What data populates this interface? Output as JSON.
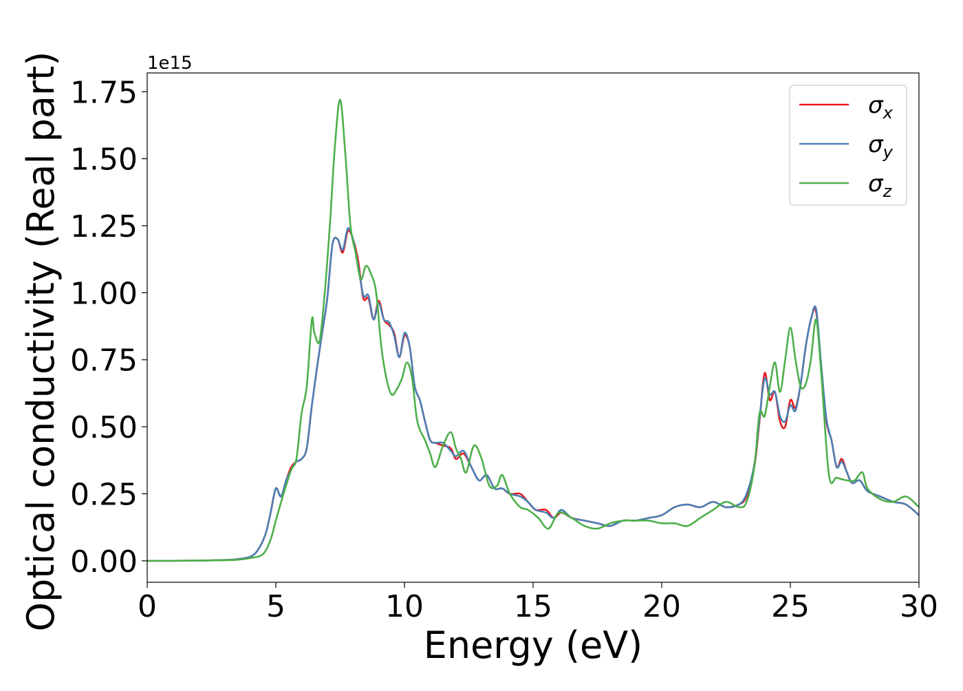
{
  "chart_data": {
    "type": "line",
    "title": "",
    "xlabel": "Energy (eV)",
    "ylabel": "Optical conductivity (Real part)",
    "y_offset_text": "1e15",
    "y_scale_multiplier": 1000000000000000.0,
    "xlim": [
      0,
      30
    ],
    "ylim": [
      -0.08,
      1.82
    ],
    "x_ticks": [
      0,
      5,
      10,
      15,
      20,
      25,
      30
    ],
    "x_tick_labels": [
      "0",
      "5",
      "10",
      "15",
      "20",
      "25",
      "30"
    ],
    "y_ticks": [
      0.0,
      0.25,
      0.5,
      0.75,
      1.0,
      1.25,
      1.5,
      1.75
    ],
    "y_tick_labels": [
      "0.00",
      "0.25",
      "0.50",
      "0.75",
      "1.00",
      "1.25",
      "1.50",
      "1.75"
    ],
    "grid": false,
    "legend_position": "top-right",
    "series": [
      {
        "name": "σx",
        "legend_symbol": "σ",
        "legend_subscript": "x",
        "color": "#e41a1c",
        "x": [
          0,
          1,
          2,
          3,
          3.5,
          4,
          4.3,
          4.6,
          4.8,
          5.0,
          5.2,
          5.4,
          5.6,
          5.8,
          6.0,
          6.2,
          6.4,
          6.6,
          6.8,
          7.0,
          7.2,
          7.4,
          7.6,
          7.8,
          8.0,
          8.2,
          8.4,
          8.6,
          8.8,
          9.0,
          9.2,
          9.4,
          9.6,
          9.8,
          10.0,
          10.2,
          10.4,
          10.6,
          10.8,
          11.0,
          11.2,
          11.5,
          11.8,
          12.0,
          12.3,
          12.6,
          12.9,
          13.2,
          13.5,
          13.8,
          14.1,
          14.5,
          14.8,
          15.1,
          15.5,
          15.8,
          16.1,
          16.5,
          17.0,
          17.5,
          18.0,
          18.5,
          19.0,
          19.5,
          20.0,
          20.5,
          21.0,
          21.5,
          22.0,
          22.5,
          23.0,
          23.3,
          23.6,
          23.8,
          24.0,
          24.2,
          24.4,
          24.6,
          24.8,
          25.0,
          25.2,
          25.4,
          25.6,
          25.8,
          26.0,
          26.2,
          26.4,
          26.6,
          26.8,
          27.0,
          27.2,
          27.4,
          27.7,
          28.0,
          28.5,
          29.0,
          29.5,
          30.0
        ],
        "y": [
          0,
          0,
          0.001,
          0.003,
          0.006,
          0.015,
          0.04,
          0.1,
          0.18,
          0.27,
          0.24,
          0.3,
          0.35,
          0.37,
          0.38,
          0.42,
          0.58,
          0.72,
          0.85,
          0.98,
          1.18,
          1.2,
          1.15,
          1.23,
          1.2,
          1.12,
          0.98,
          0.98,
          0.9,
          0.97,
          0.9,
          0.88,
          0.85,
          0.76,
          0.84,
          0.8,
          0.65,
          0.6,
          0.52,
          0.45,
          0.44,
          0.43,
          0.42,
          0.38,
          0.4,
          0.35,
          0.3,
          0.32,
          0.27,
          0.27,
          0.25,
          0.25,
          0.22,
          0.19,
          0.19,
          0.16,
          0.18,
          0.16,
          0.15,
          0.14,
          0.13,
          0.15,
          0.15,
          0.16,
          0.17,
          0.2,
          0.21,
          0.2,
          0.22,
          0.2,
          0.21,
          0.24,
          0.35,
          0.52,
          0.7,
          0.6,
          0.63,
          0.52,
          0.5,
          0.6,
          0.57,
          0.66,
          0.8,
          0.9,
          0.93,
          0.72,
          0.52,
          0.45,
          0.35,
          0.38,
          0.33,
          0.29,
          0.3,
          0.26,
          0.24,
          0.22,
          0.21,
          0.17
        ]
      },
      {
        "name": "σy",
        "legend_symbol": "σ",
        "legend_subscript": "y",
        "color": "#4a7fb5",
        "x": [
          0,
          1,
          2,
          3,
          3.5,
          4,
          4.3,
          4.6,
          4.8,
          5.0,
          5.2,
          5.4,
          5.6,
          5.8,
          6.0,
          6.2,
          6.4,
          6.6,
          6.8,
          7.0,
          7.2,
          7.4,
          7.6,
          7.8,
          8.0,
          8.2,
          8.4,
          8.6,
          8.8,
          9.0,
          9.2,
          9.4,
          9.6,
          9.8,
          10.0,
          10.2,
          10.4,
          10.6,
          10.8,
          11.0,
          11.2,
          11.5,
          11.8,
          12.0,
          12.3,
          12.6,
          12.9,
          13.2,
          13.5,
          13.8,
          14.1,
          14.5,
          14.8,
          15.1,
          15.5,
          15.8,
          16.1,
          16.5,
          17.0,
          17.5,
          18.0,
          18.5,
          19.0,
          19.5,
          20.0,
          20.5,
          21.0,
          21.5,
          22.0,
          22.5,
          23.0,
          23.3,
          23.6,
          23.8,
          24.0,
          24.2,
          24.4,
          24.6,
          24.8,
          25.0,
          25.2,
          25.4,
          25.6,
          25.8,
          26.0,
          26.2,
          26.4,
          26.6,
          26.8,
          27.0,
          27.2,
          27.4,
          27.7,
          28.0,
          28.5,
          29.0,
          29.5,
          30.0
        ],
        "y": [
          0,
          0,
          0.001,
          0.003,
          0.006,
          0.015,
          0.04,
          0.1,
          0.18,
          0.27,
          0.24,
          0.3,
          0.34,
          0.37,
          0.38,
          0.42,
          0.58,
          0.72,
          0.85,
          0.98,
          1.18,
          1.2,
          1.16,
          1.24,
          1.2,
          1.1,
          0.99,
          0.99,
          0.9,
          0.96,
          0.9,
          0.89,
          0.84,
          0.76,
          0.85,
          0.8,
          0.65,
          0.6,
          0.52,
          0.45,
          0.44,
          0.44,
          0.41,
          0.39,
          0.41,
          0.35,
          0.3,
          0.32,
          0.27,
          0.27,
          0.25,
          0.24,
          0.22,
          0.19,
          0.18,
          0.16,
          0.19,
          0.16,
          0.15,
          0.14,
          0.13,
          0.15,
          0.15,
          0.16,
          0.17,
          0.2,
          0.21,
          0.2,
          0.22,
          0.2,
          0.21,
          0.25,
          0.36,
          0.53,
          0.68,
          0.62,
          0.63,
          0.54,
          0.52,
          0.58,
          0.56,
          0.66,
          0.8,
          0.9,
          0.94,
          0.73,
          0.53,
          0.45,
          0.35,
          0.37,
          0.33,
          0.29,
          0.3,
          0.26,
          0.24,
          0.22,
          0.21,
          0.17
        ]
      },
      {
        "name": "σz",
        "legend_symbol": "σ",
        "legend_subscript": "z",
        "color": "#4daf4a",
        "x": [
          0,
          1,
          2,
          3,
          3.5,
          4,
          4.5,
          4.8,
          5.0,
          5.3,
          5.6,
          5.8,
          6.0,
          6.2,
          6.4,
          6.5,
          6.7,
          6.9,
          7.1,
          7.3,
          7.5,
          7.7,
          7.9,
          8.1,
          8.3,
          8.5,
          8.7,
          8.9,
          9.1,
          9.3,
          9.5,
          9.7,
          9.9,
          10.1,
          10.3,
          10.5,
          10.8,
          11.0,
          11.2,
          11.5,
          11.8,
          12.0,
          12.2,
          12.4,
          12.7,
          13.0,
          13.3,
          13.6,
          13.8,
          14.1,
          14.5,
          14.8,
          15.2,
          15.6,
          16.0,
          16.5,
          17.0,
          17.5,
          18.0,
          18.5,
          19.0,
          19.5,
          20.0,
          20.5,
          21.0,
          21.5,
          22.0,
          22.5,
          23.0,
          23.3,
          23.6,
          23.8,
          24.0,
          24.2,
          24.4,
          24.6,
          24.8,
          25.0,
          25.2,
          25.4,
          25.6,
          25.8,
          26.0,
          26.2,
          26.5,
          26.8,
          27.2,
          27.5,
          27.8,
          28.0,
          28.5,
          29.0,
          29.5,
          30.0
        ],
        "y": [
          0,
          0,
          0.001,
          0.002,
          0.004,
          0.01,
          0.025,
          0.08,
          0.15,
          0.25,
          0.34,
          0.38,
          0.55,
          0.65,
          0.9,
          0.85,
          0.82,
          1.0,
          1.25,
          1.55,
          1.72,
          1.52,
          1.25,
          1.15,
          1.05,
          1.1,
          1.07,
          1.0,
          0.8,
          0.68,
          0.62,
          0.64,
          0.68,
          0.74,
          0.68,
          0.52,
          0.45,
          0.4,
          0.35,
          0.43,
          0.48,
          0.42,
          0.38,
          0.33,
          0.43,
          0.38,
          0.28,
          0.28,
          0.32,
          0.25,
          0.2,
          0.19,
          0.16,
          0.12,
          0.18,
          0.16,
          0.13,
          0.12,
          0.14,
          0.15,
          0.15,
          0.15,
          0.14,
          0.14,
          0.13,
          0.16,
          0.19,
          0.22,
          0.2,
          0.22,
          0.35,
          0.55,
          0.54,
          0.65,
          0.74,
          0.63,
          0.75,
          0.87,
          0.75,
          0.65,
          0.66,
          0.75,
          0.9,
          0.7,
          0.32,
          0.31,
          0.3,
          0.3,
          0.33,
          0.27,
          0.23,
          0.22,
          0.24,
          0.2
        ]
      }
    ]
  }
}
